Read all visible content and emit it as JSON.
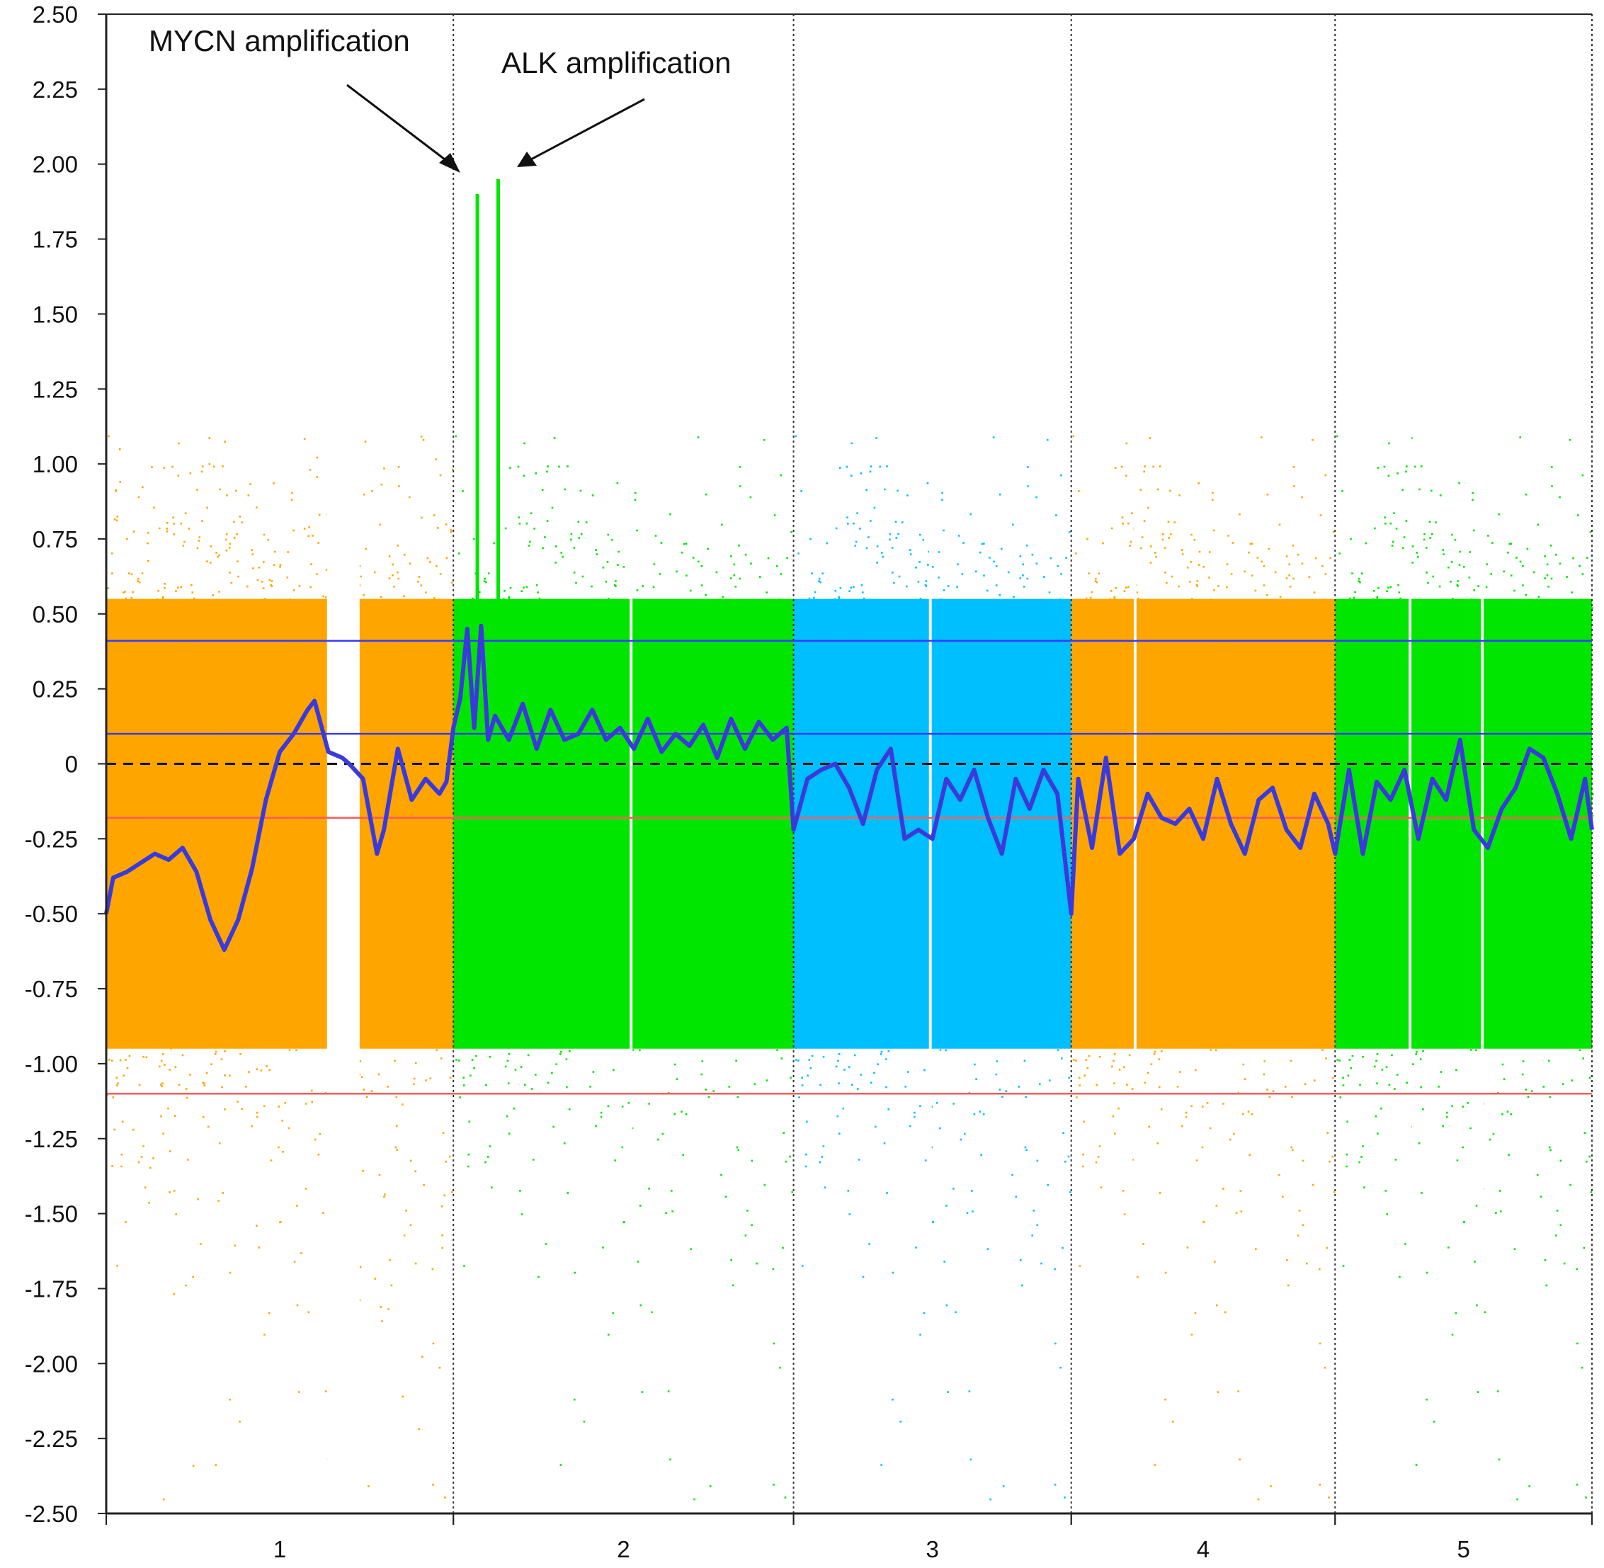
{
  "chart_data": {
    "type": "scatter",
    "title": "",
    "xlabel": "",
    "ylabel": "",
    "ylim": [
      -2.5,
      2.5
    ],
    "yticks": [
      "2.50",
      "2.25",
      "2.00",
      "1.75",
      "1.50",
      "1.25",
      "1.00",
      "0.75",
      "0.50",
      "0.25",
      "0",
      "-0.25",
      "-0.50",
      "-0.75",
      "-1.00",
      "-1.25",
      "-1.50",
      "-1.75",
      "-2.00",
      "-2.25",
      "-2.50"
    ],
    "chromosomes": [
      {
        "label": "1",
        "start": 0,
        "end": 0.5,
        "color": "#ffa500"
      },
      {
        "label": "2",
        "start": 0.5,
        "end": 0.99,
        "color": "#00e600"
      },
      {
        "label": "3",
        "start": 0.99,
        "end": 1.39,
        "color": "#00bfff"
      },
      {
        "label": "4",
        "start": 1.39,
        "end": 1.77,
        "color": "#ffa500"
      },
      {
        "label": "5",
        "start": 1.77,
        "end": 2.14,
        "color": "#00e600"
      }
    ],
    "thresholds": [
      {
        "value": 0.41,
        "color": "#3a3aff"
      },
      {
        "value": 0.1,
        "color": "#3a3aff"
      },
      {
        "value": -0.18,
        "color": "#ff5a5a"
      },
      {
        "value": -1.1,
        "color": "#ff5a5a"
      }
    ],
    "dashed_baseline": 0,
    "segmentation_line": {
      "color": "#3a3adc",
      "x": [
        0,
        0.01,
        0.03,
        0.05,
        0.07,
        0.09,
        0.11,
        0.13,
        0.15,
        0.17,
        0.19,
        0.21,
        0.23,
        0.25,
        0.27,
        0.29,
        0.3,
        0.32,
        0.34,
        0.35,
        0.37,
        0.39,
        0.4,
        0.42,
        0.44,
        0.46,
        0.48,
        0.49,
        0.5,
        0.51,
        0.52,
        0.53,
        0.54,
        0.55,
        0.56,
        0.57,
        0.58,
        0.6,
        0.62,
        0.64,
        0.66,
        0.68,
        0.7,
        0.72,
        0.74,
        0.76,
        0.78,
        0.8,
        0.82,
        0.84,
        0.86,
        0.88,
        0.9,
        0.92,
        0.94,
        0.96,
        0.98,
        0.99,
        1.01,
        1.03,
        1.05,
        1.07,
        1.09,
        1.11,
        1.13,
        1.15,
        1.17,
        1.19,
        1.21,
        1.23,
        1.25,
        1.27,
        1.29,
        1.31,
        1.33,
        1.35,
        1.37,
        1.39,
        1.4,
        1.42,
        1.44,
        1.46,
        1.48,
        1.5,
        1.52,
        1.54,
        1.56,
        1.58,
        1.6,
        1.62,
        1.64,
        1.66,
        1.68,
        1.7,
        1.72,
        1.74,
        1.76,
        1.77,
        1.79,
        1.81,
        1.83,
        1.85,
        1.87,
        1.89,
        1.91,
        1.93,
        1.95,
        1.97,
        1.99,
        2.01,
        2.03,
        2.05,
        2.07,
        2.09,
        2.11,
        2.13,
        2.14
      ],
      "y": [
        -0.5,
        -0.38,
        -0.36,
        -0.33,
        -0.3,
        -0.32,
        -0.28,
        -0.36,
        -0.52,
        -0.62,
        -0.52,
        -0.35,
        -0.12,
        0.04,
        0.1,
        0.18,
        0.21,
        0.04,
        0.02,
        0.0,
        -0.05,
        -0.3,
        -0.22,
        0.05,
        -0.12,
        -0.05,
        -0.1,
        -0.06,
        0.12,
        0.22,
        0.45,
        0.12,
        0.46,
        0.08,
        0.16,
        0.12,
        0.08,
        0.2,
        0.05,
        0.18,
        0.08,
        0.1,
        0.18,
        0.08,
        0.12,
        0.05,
        0.15,
        0.04,
        0.1,
        0.06,
        0.13,
        0.02,
        0.15,
        0.05,
        0.14,
        0.08,
        0.12,
        -0.22,
        -0.05,
        -0.02,
        0.0,
        -0.08,
        -0.2,
        -0.02,
        0.05,
        -0.25,
        -0.22,
        -0.25,
        -0.05,
        -0.12,
        -0.02,
        -0.18,
        -0.3,
        -0.05,
        -0.15,
        -0.02,
        -0.1,
        -0.5,
        -0.05,
        -0.28,
        0.02,
        -0.3,
        -0.25,
        -0.1,
        -0.18,
        -0.2,
        -0.15,
        -0.25,
        -0.05,
        -0.2,
        -0.3,
        -0.12,
        -0.08,
        -0.22,
        -0.28,
        -0.1,
        -0.2,
        -0.3,
        -0.02,
        -0.3,
        -0.06,
        -0.12,
        -0.02,
        -0.25,
        -0.05,
        -0.12,
        0.08,
        -0.22,
        -0.28,
        -0.15,
        -0.08,
        0.05,
        0.02,
        -0.1,
        -0.25,
        -0.05,
        -0.22
      ]
    },
    "annotations": [
      {
        "text": "MYCN amplification"
      },
      {
        "text": "ALK amplification"
      }
    ]
  }
}
